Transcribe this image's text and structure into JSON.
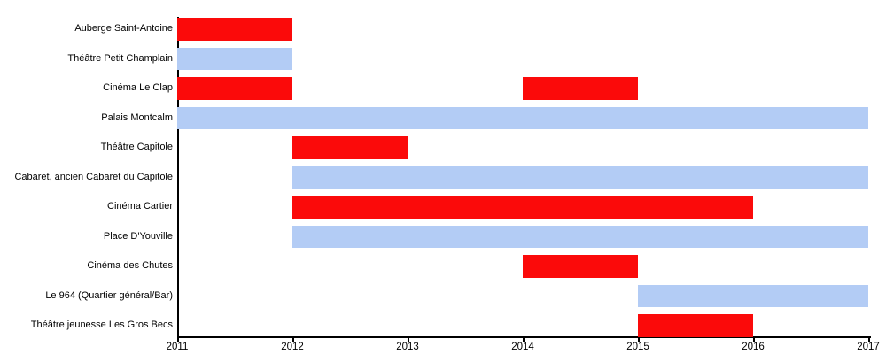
{
  "chart_data": {
    "type": "bar",
    "variant": "gantt-timeline",
    "title": "",
    "xlabel": "",
    "ylabel": "",
    "x_range": [
      2011,
      2017
    ],
    "x_ticks": [
      "2011",
      "2012",
      "2013",
      "2014",
      "2015",
      "2016",
      "2017"
    ],
    "grid": false,
    "legend": false,
    "colors": {
      "red": "#fb0a0a",
      "blue": "#b3ccf5",
      "axis": "#000000",
      "text": "#000000",
      "background": "#ffffff"
    },
    "rows": [
      {
        "label": "Auberge Saint-Antoine",
        "bars": [
          {
            "start": 2011,
            "end": 2012,
            "color": "red"
          }
        ]
      },
      {
        "label": "Théâtre Petit Champlain",
        "bars": [
          {
            "start": 2011,
            "end": 2012,
            "color": "blue"
          }
        ]
      },
      {
        "label": "Cinéma Le Clap",
        "bars": [
          {
            "start": 2011,
            "end": 2012,
            "color": "red"
          },
          {
            "start": 2014,
            "end": 2015,
            "color": "red"
          }
        ]
      },
      {
        "label": "Palais Montcalm",
        "bars": [
          {
            "start": 2011,
            "end": 2017,
            "color": "blue"
          }
        ]
      },
      {
        "label": "Théâtre Capitole",
        "bars": [
          {
            "start": 2012,
            "end": 2013,
            "color": "red"
          }
        ]
      },
      {
        "label": "Cabaret, ancien Cabaret du Capitole",
        "bars": [
          {
            "start": 2012,
            "end": 2017,
            "color": "blue"
          }
        ]
      },
      {
        "label": "Cinéma Cartier",
        "bars": [
          {
            "start": 2012,
            "end": 2016,
            "color": "red"
          }
        ]
      },
      {
        "label": "Place D'Youville",
        "bars": [
          {
            "start": 2012,
            "end": 2017,
            "color": "blue"
          }
        ]
      },
      {
        "label": "Cinéma des Chutes",
        "bars": [
          {
            "start": 2014,
            "end": 2015,
            "color": "red"
          }
        ]
      },
      {
        "label": "Le 964 (Quartier général/Bar)",
        "bars": [
          {
            "start": 2015,
            "end": 2017,
            "color": "blue"
          }
        ]
      },
      {
        "label": "Théâtre jeunesse Les Gros Becs",
        "bars": [
          {
            "start": 2015,
            "end": 2016,
            "color": "red"
          }
        ]
      }
    ]
  }
}
